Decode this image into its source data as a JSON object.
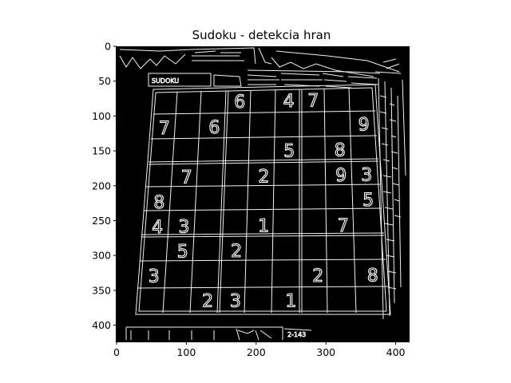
{
  "figure": {
    "title": "Sudoku - detekcia hran",
    "background": "#000000",
    "edge_color": "#ffffff"
  },
  "axes": {
    "x_ticks": [
      0,
      100,
      200,
      300,
      400
    ],
    "y_ticks": [
      0,
      50,
      100,
      150,
      200,
      250,
      300,
      350,
      400
    ],
    "x_range": [
      0,
      420
    ],
    "y_range": [
      0,
      424
    ]
  },
  "image_text": {
    "logo": "SUDOKU",
    "page_number": "2-143"
  },
  "grid": {
    "size": 9,
    "cells": [
      {
        "row": 0,
        "col": 3,
        "value": "6"
      },
      {
        "row": 0,
        "col": 5,
        "value": "4"
      },
      {
        "row": 0,
        "col": 6,
        "value": "7"
      },
      {
        "row": 1,
        "col": 0,
        "value": "7"
      },
      {
        "row": 1,
        "col": 2,
        "value": "6"
      },
      {
        "row": 1,
        "col": 8,
        "value": "9"
      },
      {
        "row": 2,
        "col": 5,
        "value": "5"
      },
      {
        "row": 2,
        "col": 7,
        "value": "8"
      },
      {
        "row": 3,
        "col": 1,
        "value": "7"
      },
      {
        "row": 3,
        "col": 4,
        "value": "2"
      },
      {
        "row": 3,
        "col": 7,
        "value": "9"
      },
      {
        "row": 3,
        "col": 8,
        "value": "3"
      },
      {
        "row": 4,
        "col": 0,
        "value": "8"
      },
      {
        "row": 4,
        "col": 8,
        "value": "5"
      },
      {
        "row": 5,
        "col": 0,
        "value": "4"
      },
      {
        "row": 5,
        "col": 1,
        "value": "3"
      },
      {
        "row": 5,
        "col": 4,
        "value": "1"
      },
      {
        "row": 5,
        "col": 7,
        "value": "7"
      },
      {
        "row": 6,
        "col": 1,
        "value": "5"
      },
      {
        "row": 6,
        "col": 3,
        "value": "2"
      },
      {
        "row": 7,
        "col": 0,
        "value": "3"
      },
      {
        "row": 7,
        "col": 6,
        "value": "2"
      },
      {
        "row": 7,
        "col": 8,
        "value": "8"
      },
      {
        "row": 8,
        "col": 2,
        "value": "2"
      },
      {
        "row": 8,
        "col": 3,
        "value": "3"
      },
      {
        "row": 8,
        "col": 5,
        "value": "1"
      }
    ]
  }
}
